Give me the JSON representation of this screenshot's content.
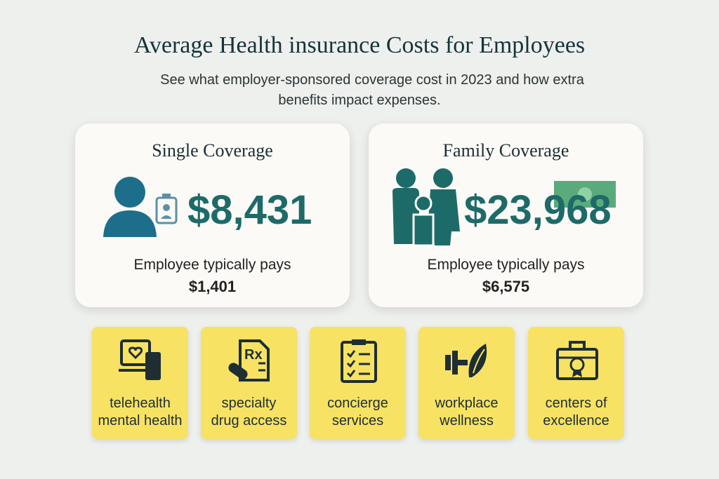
{
  "header": {
    "title": "Average Health insurance Costs for Employees",
    "subtitle": [
      "See what employer-sponsored coverage cost in 2023 and how extra",
      "benefits impact expenses."
    ]
  },
  "cards": [
    {
      "title": "Single Coverage",
      "amount": "$8,431",
      "note": "Employee typically pays",
      "employee_amount": "$1,401"
    },
    {
      "title": "Family Coverage",
      "amount": "$23,968",
      "note": "Employee typically pays",
      "employee_amount": "$6,575"
    }
  ],
  "benefits": [
    {
      "lines": [
        "telehealth",
        "mental health"
      ]
    },
    {
      "lines": [
        "specialty",
        "drug access"
      ]
    },
    {
      "lines": [
        "concierge",
        "services"
      ]
    },
    {
      "lines": [
        "workplace",
        "wellness"
      ]
    },
    {
      "lines": [
        "centers of",
        "excellence"
      ]
    }
  ]
}
